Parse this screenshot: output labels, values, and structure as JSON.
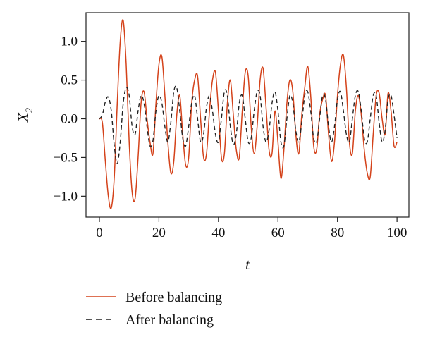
{
  "chart_data": {
    "type": "line",
    "xlabel": "t",
    "ylabel": "X",
    "ylabel_subscript": "2",
    "xlim": [
      -4.5,
      104
    ],
    "ylim": [
      -1.27,
      1.37
    ],
    "xticks": [
      0,
      20,
      40,
      60,
      80,
      100
    ],
    "xtick_labels": [
      "0",
      "20",
      "40",
      "60",
      "80",
      "100"
    ],
    "yticks": [
      -1.0,
      -0.5,
      0.0,
      0.5,
      1.0
    ],
    "ytick_labels": [
      "−1.0",
      "−0.5",
      "0.0",
      "0.5",
      "1.0"
    ],
    "grid": false,
    "legend_position": "below",
    "series": [
      {
        "name": "Before balancing",
        "style": "solid",
        "color": "#d4421a",
        "x": [
          0,
          1,
          2,
          3,
          4,
          5,
          6,
          7,
          8,
          9,
          10,
          11,
          12,
          13,
          14,
          15,
          16,
          17,
          18,
          19,
          20,
          21,
          22,
          23,
          24,
          25,
          26,
          27,
          28,
          29,
          30,
          31,
          32,
          33,
          34,
          35,
          36,
          37,
          38,
          39,
          40,
          41,
          42,
          43,
          44,
          45,
          46,
          47,
          48,
          49,
          50,
          51,
          52,
          53,
          54,
          55,
          56,
          57,
          58,
          59,
          60,
          61,
          62,
          63,
          64,
          65,
          66,
          67,
          68,
          69,
          70,
          71,
          72,
          73,
          74,
          75,
          76,
          77,
          78,
          79,
          80,
          81,
          82,
          83,
          84,
          85,
          86,
          87,
          88,
          89,
          90,
          91,
          92,
          93,
          94,
          95,
          96,
          97,
          98,
          99,
          100
        ],
        "y": [
          0.0,
          -0.05,
          -0.55,
          -1.0,
          -1.15,
          -0.75,
          0.2,
          1.0,
          1.27,
          0.7,
          -0.3,
          -0.95,
          -1.03,
          -0.5,
          0.2,
          0.35,
          0.0,
          -0.3,
          -0.45,
          0.2,
          0.7,
          0.8,
          0.3,
          -0.3,
          -0.7,
          -0.55,
          0.05,
          0.3,
          -0.2,
          -0.6,
          -0.5,
          0.2,
          0.5,
          0.55,
          0.0,
          -0.5,
          -0.45,
          0.1,
          0.5,
          0.6,
          0.1,
          -0.5,
          -0.45,
          0.2,
          0.5,
          0.05,
          -0.4,
          -0.5,
          0.1,
          0.6,
          0.55,
          -0.1,
          -0.45,
          -0.1,
          0.5,
          0.65,
          0.15,
          -0.4,
          -0.45,
          0.1,
          -0.3,
          -0.77,
          -0.4,
          0.2,
          0.5,
          0.35,
          -0.2,
          -0.45,
          0.05,
          0.4,
          0.68,
          0.3,
          -0.35,
          -0.4,
          0.05,
          0.25,
          0.3,
          -0.2,
          -0.55,
          -0.3,
          0.3,
          0.7,
          0.82,
          0.4,
          -0.3,
          -0.45,
          0.1,
          0.3,
          0.05,
          -0.4,
          -0.7,
          -0.75,
          -0.2,
          0.3,
          0.33,
          0.0,
          -0.2,
          0.33,
          0.1,
          -0.35,
          -0.3
        ]
      },
      {
        "name": "After balancing",
        "style": "dashed",
        "color": "#222222",
        "x": [
          0,
          1,
          2,
          3,
          4,
          5,
          6,
          7,
          8,
          9,
          10,
          11,
          12,
          13,
          14,
          15,
          16,
          17,
          18,
          19,
          20,
          21,
          22,
          23,
          24,
          25,
          26,
          27,
          28,
          29,
          30,
          31,
          32,
          33,
          34,
          35,
          36,
          37,
          38,
          39,
          40,
          41,
          42,
          43,
          44,
          45,
          46,
          47,
          48,
          49,
          50,
          51,
          52,
          53,
          54,
          55,
          56,
          57,
          58,
          59,
          60,
          61,
          62,
          63,
          64,
          65,
          66,
          67,
          68,
          69,
          70,
          71,
          72,
          73,
          74,
          75,
          76,
          77,
          78,
          79,
          80,
          81,
          82,
          83,
          84,
          85,
          86,
          87,
          88,
          89,
          90,
          91,
          92,
          93,
          94,
          95,
          96,
          97,
          98,
          99,
          100
        ],
        "y": [
          0.0,
          0.05,
          0.22,
          0.28,
          0.1,
          -0.35,
          -0.58,
          -0.3,
          0.2,
          0.4,
          0.3,
          -0.1,
          -0.2,
          0.1,
          0.3,
          0.2,
          -0.1,
          -0.35,
          -0.28,
          0.1,
          0.3,
          0.2,
          -0.1,
          -0.3,
          -0.05,
          0.35,
          0.4,
          0.1,
          -0.25,
          -0.35,
          -0.1,
          0.2,
          0.3,
          0.0,
          -0.3,
          -0.2,
          0.15,
          0.3,
          0.1,
          -0.2,
          -0.3,
          0.0,
          0.35,
          0.3,
          -0.1,
          -0.33,
          -0.2,
          0.2,
          0.3,
          0.0,
          -0.3,
          -0.25,
          0.1,
          0.35,
          0.3,
          -0.1,
          -0.3,
          -0.15,
          0.2,
          0.35,
          0.1,
          -0.3,
          -0.35,
          0.0,
          0.3,
          0.2,
          -0.15,
          -0.3,
          -0.05,
          0.3,
          0.35,
          0.1,
          -0.25,
          -0.3,
          0.0,
          0.3,
          0.25,
          -0.1,
          -0.3,
          -0.1,
          0.25,
          0.35,
          0.1,
          -0.2,
          -0.3,
          0.0,
          0.3,
          0.35,
          0.1,
          -0.25,
          -0.3,
          0.0,
          0.3,
          0.3,
          -0.05,
          -0.3,
          -0.15,
          0.25,
          0.3,
          0.05,
          -0.25
        ]
      }
    ]
  }
}
